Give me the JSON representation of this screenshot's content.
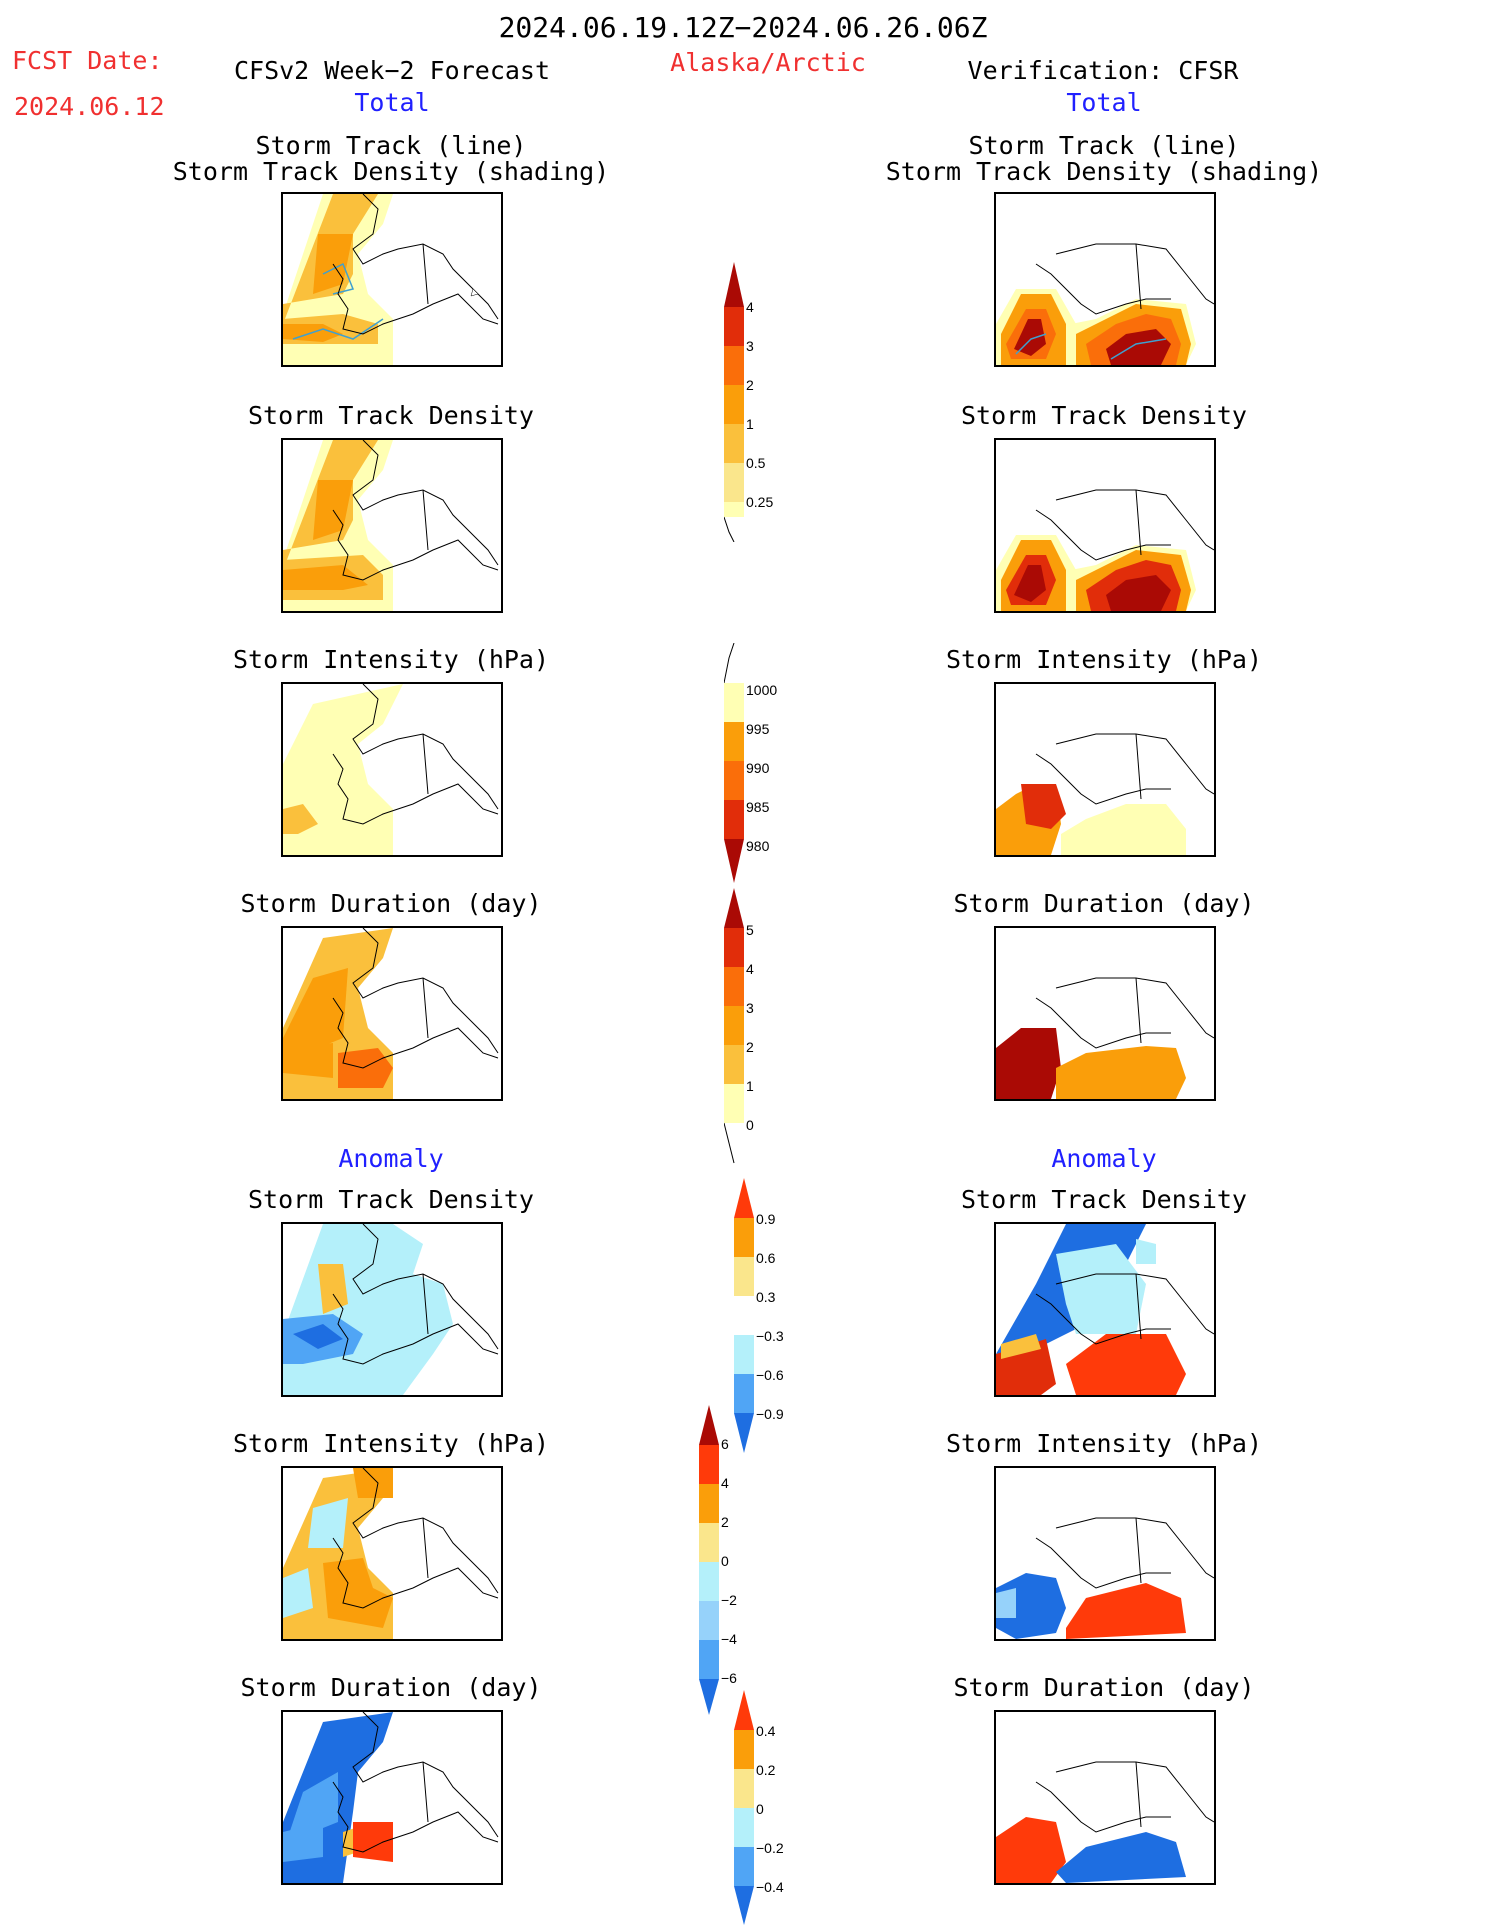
{
  "header": {
    "period": "2024.06.19.12Z−2024.06.26.06Z",
    "fcst_label": "FCST Date:",
    "fcst_date": "2024.06.12",
    "model": "CFSv2 Week−2 Forecast",
    "region": "Alaska/Arctic",
    "verification": "Verification: CFSR"
  },
  "columns": {
    "left_total": "Total",
    "right_total": "Total",
    "left_anomaly": "Anomaly",
    "right_anomaly": "Anomaly"
  },
  "panels": {
    "track_line_1": "Storm Track (line)",
    "track_line_2": "Storm Track Density (shading)",
    "density": "Storm Track Density",
    "intensity": "Storm Intensity (hPa)",
    "duration": "Storm Duration (day)"
  },
  "colors": {
    "lightyellow": "#ffffb4",
    "yellow": "#fae68c",
    "yelloworange": "#fac03c",
    "orange": "#fa9e0a",
    "darkorange": "#fa6e0a",
    "red": "#e12d0a",
    "darkred": "#aa0a05",
    "lightblue": "#b4f0fa",
    "skyblue": "#96d2fa",
    "medblue": "#50a5f5",
    "blue": "#1e6ee1"
  },
  "colorbars": [
    {
      "id": "density_total",
      "labels": [
        "4",
        "3",
        "2",
        "1",
        "0.5",
        "0.25"
      ]
    },
    {
      "id": "intensity_total",
      "labels": [
        "1000",
        "995",
        "990",
        "985",
        "980"
      ]
    },
    {
      "id": "duration_total",
      "labels": [
        "5",
        "4",
        "3",
        "2",
        "1",
        "0"
      ]
    },
    {
      "id": "density_anom",
      "labels": [
        "0.9",
        "0.6",
        "0.3",
        "−0.3",
        "−0.6",
        "−0.9"
      ]
    },
    {
      "id": "intensity_anom",
      "labels": [
        "6",
        "4",
        "2",
        "0",
        "−2",
        "−4",
        "−6"
      ]
    },
    {
      "id": "duration_anom",
      "labels": [
        "0.4",
        "0.2",
        "0",
        "−0.2",
        "−0.4"
      ]
    }
  ]
}
